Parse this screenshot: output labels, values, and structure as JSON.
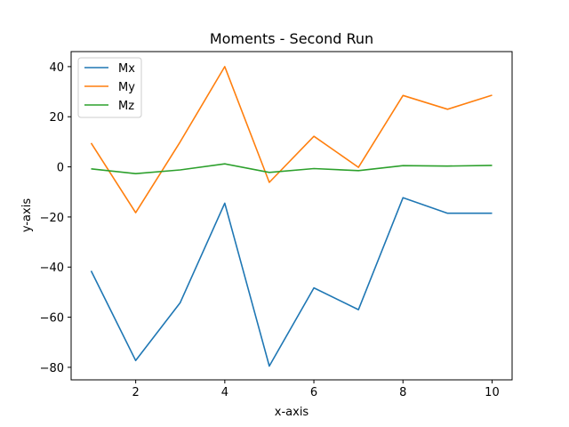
{
  "chart_data": {
    "type": "line",
    "title": "Moments - Second Run",
    "xlabel": "x-axis",
    "ylabel": "y-axis",
    "x": [
      1,
      2,
      3,
      4,
      5,
      6,
      7,
      8,
      9,
      10
    ],
    "xlim": [
      0.55,
      10.45
    ],
    "ylim": [
      -85,
      46
    ],
    "xticks": [
      2,
      4,
      6,
      8,
      10
    ],
    "yticks": [
      -80,
      -60,
      -40,
      -20,
      0,
      20,
      40
    ],
    "ytick_labels": [
      "−80",
      "−60",
      "−40",
      "−20",
      "0",
      "20",
      "40"
    ],
    "grid": false,
    "legend_position": "top-left",
    "series": [
      {
        "name": "Mx",
        "color": "#1f77b4",
        "values": [
          -41.5,
          -77.3,
          -54.2,
          -14.5,
          -79.5,
          -48.3,
          -57.0,
          -12.3,
          -18.5,
          -18.5
        ]
      },
      {
        "name": "My",
        "color": "#ff7f0e",
        "values": [
          9.5,
          -18.3,
          10.0,
          40.0,
          -6.2,
          12.2,
          -0.2,
          28.5,
          23.0,
          28.6
        ]
      },
      {
        "name": "Mz",
        "color": "#2ca02c",
        "values": [
          -0.8,
          -2.7,
          -1.2,
          1.2,
          -2.2,
          -0.7,
          -1.5,
          0.5,
          0.3,
          0.6
        ]
      }
    ]
  }
}
